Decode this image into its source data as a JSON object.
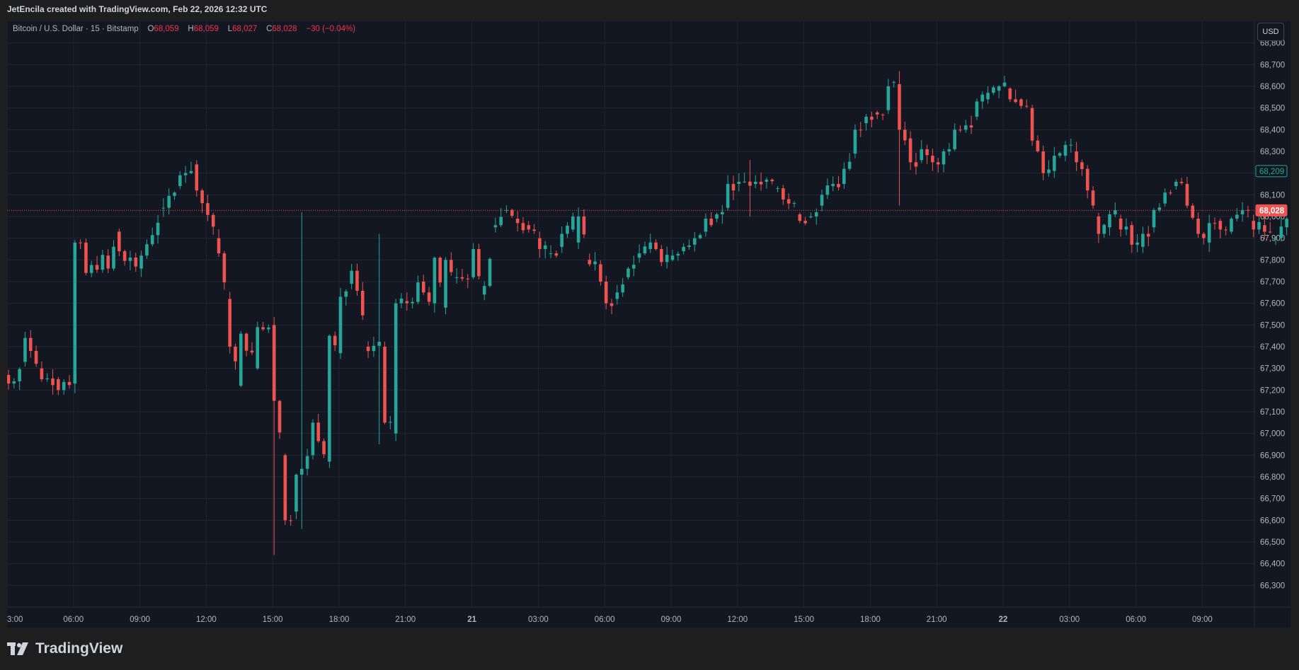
{
  "caption": "JetEncila created with TradingView.com, Feb 22, 2026 12:32 UTC",
  "legend": {
    "symbol": "Bitcoin / U.S. Dollar · 15 · Bitstamp",
    "o_label": "O",
    "o_value": "68,059",
    "h_label": "H",
    "h_value": "68,059",
    "l_label": "L",
    "l_value": "68,027",
    "c_label": "C",
    "c_value": "68,028",
    "change": "−30 (−0.04%)"
  },
  "currency_button": "USD",
  "brand": {
    "name": "TradingView"
  },
  "colors": {
    "background": "#131722",
    "grid": "#232632",
    "up": "#26a69a",
    "down": "#ef5350",
    "axis_text": "#b2b5be"
  },
  "chart_data": {
    "type": "candlestick",
    "ylim": [
      66200,
      68900
    ],
    "y_ticks": [
      "66,300",
      "66,400",
      "66,500",
      "66,600",
      "66,700",
      "66,800",
      "66,900",
      "67,000",
      "67,100",
      "67,200",
      "67,300",
      "67,400",
      "67,500",
      "67,600",
      "67,700",
      "67,800",
      "67,900",
      "68,000",
      "68,100",
      "68,200",
      "68,300",
      "68,400",
      "68,500",
      "68,600",
      "68,700",
      "68,800"
    ],
    "x_tick_labels": [
      "3:00",
      "06:00",
      "09:00",
      "12:00",
      "15:00",
      "18:00",
      "21:00",
      "21",
      "03:00",
      "06:00",
      "09:00",
      "12:00",
      "15:00",
      "18:00",
      "21:00",
      "22",
      "03:00",
      "06:00",
      "09:00"
    ],
    "x_tick_bold": [
      "21",
      "22"
    ],
    "badges": [
      {
        "label": "68,209",
        "value": 68209,
        "style": "outline"
      },
      {
        "label": "68,028",
        "value": 68028,
        "style": "filled"
      }
    ],
    "last_price_line": 68028,
    "grid": true,
    "candles_per_major_tick": 12,
    "anchors": [
      [
        0,
        67270,
        67230,
        67380
      ],
      [
        3,
        67330,
        67440,
        67300
      ],
      [
        6,
        67300,
        67250,
        67400
      ],
      [
        9,
        67250,
        67200,
        67310
      ],
      [
        12,
        67230,
        67880,
        67950
      ],
      [
        14,
        67880,
        67740,
        67700
      ],
      [
        18,
        67820,
        67760,
        67900
      ],
      [
        20,
        67930,
        67840,
        67950
      ],
      [
        24,
        67760,
        67820,
        67900
      ],
      [
        28,
        68040,
        68040,
        68150
      ],
      [
        31,
        68140,
        68190,
        68300
      ],
      [
        34,
        68240,
        68120,
        68240
      ],
      [
        38,
        67900,
        67830,
        67850
      ],
      [
        40,
        67620,
        67400,
        67600
      ],
      [
        42,
        67220,
        67460,
        67500
      ],
      [
        45,
        67300,
        67490,
        67540
      ],
      [
        48,
        67500,
        67150,
        67120
      ],
      [
        50,
        66900,
        66600,
        66550
      ],
      [
        52,
        66640,
        66810,
        66800
      ],
      [
        55,
        66900,
        67050,
        67100
      ],
      [
        58,
        66870,
        67450,
        67500
      ],
      [
        60,
        67370,
        67630,
        67660
      ],
      [
        62,
        67690,
        67750,
        67800
      ],
      [
        65,
        67400,
        67380,
        67300
      ],
      [
        68,
        67400,
        67050,
        67000
      ],
      [
        70,
        67000,
        67600,
        67650
      ],
      [
        72,
        67610,
        67600,
        67640
      ],
      [
        75,
        67700,
        67650,
        67620
      ],
      [
        77,
        67600,
        67810,
        67850
      ],
      [
        79,
        67580,
        67800,
        67770
      ],
      [
        81,
        67720,
        67720,
        67750
      ],
      [
        84,
        67720,
        67850,
        67850
      ],
      [
        86,
        67640,
        67680,
        67650
      ],
      [
        88,
        67950,
        67960,
        67950
      ],
      [
        90,
        68030,
        68030,
        68100
      ],
      [
        92,
        67990,
        67970,
        68000
      ],
      [
        94,
        67960,
        67940,
        67900
      ],
      [
        96,
        67900,
        67850,
        67810
      ],
      [
        98,
        67830,
        67830,
        67850
      ],
      [
        100,
        67860,
        67920,
        67920
      ],
      [
        102,
        67940,
        68000,
        68030
      ],
      [
        103,
        67880,
        68000,
        68040
      ],
      [
        105,
        67800,
        67780,
        67790
      ],
      [
        107,
        67780,
        67700,
        67690
      ],
      [
        108,
        67700,
        67600,
        67550
      ],
      [
        110,
        67620,
        67650,
        67680
      ],
      [
        112,
        67720,
        67760,
        67800
      ],
      [
        114,
        67810,
        67830,
        67850
      ],
      [
        116,
        67850,
        67880,
        67900
      ],
      [
        118,
        67850,
        67790,
        67780
      ],
      [
        120,
        67800,
        67820,
        67830
      ],
      [
        122,
        67840,
        67860,
        67870
      ],
      [
        124,
        67870,
        67900,
        67930
      ],
      [
        126,
        67930,
        67990,
        68020
      ],
      [
        128,
        67990,
        68010,
        68060
      ],
      [
        130,
        68040,
        68150,
        68240
      ],
      [
        132,
        68150,
        68160,
        68190
      ],
      [
        135,
        68150,
        68160,
        68190
      ],
      [
        137,
        68160,
        68170,
        68200
      ],
      [
        139,
        68130,
        68130,
        68110
      ],
      [
        141,
        68080,
        68060,
        68030
      ],
      [
        143,
        68010,
        67980,
        67960
      ],
      [
        145,
        68000,
        68000,
        68030
      ],
      [
        147,
        68050,
        68100,
        68130
      ],
      [
        149,
        68140,
        68150,
        68160
      ],
      [
        151,
        68150,
        68220,
        68260
      ],
      [
        153,
        68290,
        68400,
        68450
      ],
      [
        155,
        68430,
        68460,
        68500
      ],
      [
        157,
        68480,
        68470,
        68450
      ],
      [
        159,
        68490,
        68600,
        68660
      ],
      [
        160,
        68620,
        68620,
        68660
      ],
      [
        161,
        68610,
        68400,
        68380
      ],
      [
        163,
        68360,
        68250,
        68220
      ],
      [
        165,
        68260,
        68310,
        68330
      ],
      [
        167,
        68280,
        68250,
        68230
      ],
      [
        169,
        68240,
        68300,
        68320
      ],
      [
        171,
        68310,
        68400,
        68450
      ],
      [
        173,
        68400,
        68420,
        68440
      ],
      [
        175,
        68460,
        68530,
        68570
      ],
      [
        177,
        68540,
        68570,
        68600
      ],
      [
        179,
        68580,
        68600,
        68630
      ],
      [
        181,
        68590,
        68540,
        68530
      ],
      [
        183,
        68540,
        68510,
        68500
      ],
      [
        185,
        68500,
        68350,
        68330
      ],
      [
        187,
        68300,
        68200,
        68170
      ],
      [
        189,
        68210,
        68280,
        68300
      ],
      [
        191,
        68280,
        68330,
        68360
      ],
      [
        193,
        68300,
        68250,
        68220
      ],
      [
        195,
        68220,
        68120,
        68070
      ],
      [
        197,
        68000,
        67920,
        67900
      ],
      [
        199,
        67950,
        68010,
        68060
      ],
      [
        201,
        67990,
        67940,
        67920
      ],
      [
        203,
        67960,
        67870,
        67830
      ],
      [
        205,
        67860,
        67920,
        67940
      ],
      [
        207,
        67950,
        68030,
        68040
      ],
      [
        209,
        68060,
        68110,
        68140
      ],
      [
        211,
        68140,
        68160,
        68190
      ],
      [
        213,
        68150,
        68050,
        68000
      ],
      [
        215,
        67990,
        67920,
        67880
      ],
      [
        217,
        67880,
        67970,
        68000
      ],
      [
        219,
        67980,
        67940,
        67920
      ],
      [
        221,
        67930,
        67990,
        68000
      ],
      [
        223,
        68010,
        68030,
        68040
      ],
      [
        225,
        67980,
        67940,
        67920
      ],
      [
        227,
        67960,
        67930,
        67920
      ],
      [
        229,
        67900,
        67900,
        67890
      ],
      [
        231,
        67950,
        67990,
        68030
      ],
      [
        233,
        68040,
        68080,
        68100
      ],
      [
        235,
        68060,
        68020,
        68000
      ],
      [
        237,
        67990,
        68010,
        68030
      ],
      [
        239,
        68050,
        68060,
        68070
      ],
      [
        241,
        68040,
        67980,
        67960
      ],
      [
        243,
        67960,
        67940,
        67920
      ],
      [
        245,
        67930,
        67950,
        67960
      ],
      [
        247,
        67970,
        68010,
        68020
      ],
      [
        249,
        68020,
        68040,
        68050
      ],
      [
        251,
        68060,
        68100,
        68120
      ],
      [
        253,
        68120,
        68200,
        68209
      ]
    ]
  }
}
